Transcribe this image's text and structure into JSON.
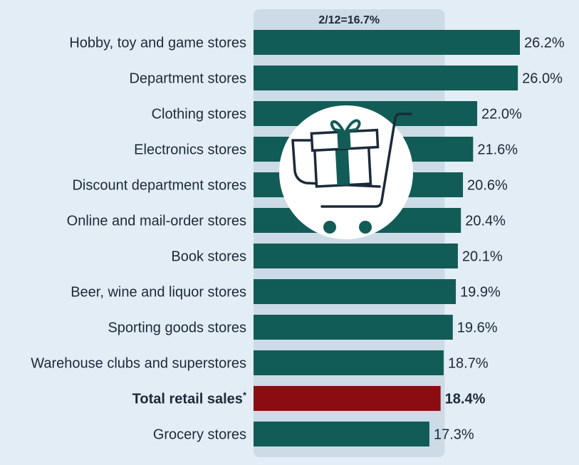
{
  "chart_data": {
    "type": "bar",
    "orientation": "horizontal",
    "title": "",
    "xlabel": "",
    "ylabel": "",
    "categories": [
      "Hobby, toy and game stores",
      "Department stores",
      "Clothing stores",
      "Electronics stores",
      "Discount department stores",
      "Online and mail-order stores",
      "Book stores",
      "Beer, wine and liquor stores",
      "Sporting goods stores",
      "Warehouse clubs and superstores",
      "Total retail sales",
      "Grocery stores"
    ],
    "values": [
      26.2,
      26.0,
      22.0,
      21.6,
      20.6,
      20.4,
      20.1,
      19.9,
      19.6,
      18.7,
      18.4,
      17.3
    ],
    "value_labels": [
      "26.2%",
      "26.0%",
      "22.0%",
      "21.6%",
      "20.6%",
      "20.4%",
      "20.1%",
      "19.9%",
      "19.6%",
      "18.7%",
      "18.4%",
      "17.3%"
    ],
    "highlight_index": 10,
    "highlight_marker": "*",
    "xlim": [
      0,
      26.2
    ],
    "reference": {
      "label": "2/12=16.7%",
      "value": 16.7
    },
    "colors": {
      "bar": "#125c57",
      "highlight": "#8c0d11",
      "background": "#e3edf5",
      "reference_band": "#cddbe7",
      "text": "#1b2a3a"
    },
    "icon": "shopping-cart-with-gift-icon",
    "grid": false,
    "legend": "none"
  }
}
